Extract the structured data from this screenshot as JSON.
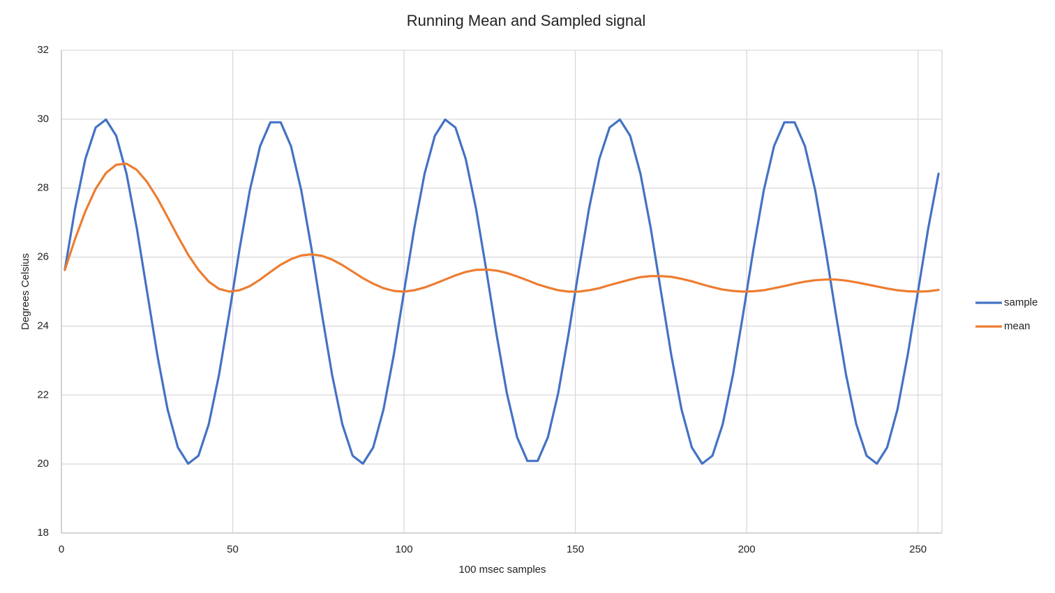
{
  "chart_data": {
    "type": "line",
    "title": "Running Mean and Sampled signal",
    "x_label": "100 msec samples",
    "y_label": "Degrees Celsius",
    "x": [
      1,
      4,
      7,
      10,
      13,
      16,
      19,
      22,
      25,
      28,
      31,
      34,
      37,
      40,
      43,
      46,
      49,
      52,
      55,
      58,
      61,
      64,
      67,
      70,
      73,
      76,
      79,
      82,
      85,
      88,
      91,
      94,
      97,
      100,
      103,
      106,
      109,
      112,
      115,
      118,
      121,
      124,
      127,
      130,
      133,
      136,
      139,
      142,
      145,
      148,
      151,
      154,
      157,
      160,
      163,
      166,
      169,
      172,
      175,
      178,
      181,
      184,
      187,
      190,
      193,
      196,
      199,
      202,
      205,
      208,
      211,
      214,
      217,
      220,
      223,
      226,
      229,
      232,
      235,
      238,
      241,
      244,
      247,
      250,
      253,
      256
    ],
    "series": [
      {
        "name": "sample",
        "color": "#4472c4",
        "values": [
          25.63,
          27.41,
          28.85,
          29.76,
          29.99,
          29.52,
          28.42,
          26.84,
          25,
          23.16,
          21.58,
          20.48,
          20.01,
          20.24,
          21.15,
          22.59,
          24.37,
          26.24,
          27.94,
          29.22,
          29.91,
          29.91,
          29.22,
          27.94,
          26.24,
          24.37,
          22.59,
          21.15,
          20.24,
          20.01,
          20.48,
          21.58,
          23.16,
          25,
          26.84,
          28.42,
          29.52,
          29.99,
          29.76,
          28.85,
          27.41,
          25.63,
          23.76,
          22.06,
          20.78,
          20.09,
          20.09,
          20.78,
          22.06,
          23.76,
          25.63,
          27.41,
          28.85,
          29.76,
          29.99,
          29.52,
          28.42,
          26.84,
          25,
          23.16,
          21.58,
          20.48,
          20.01,
          20.24,
          21.15,
          22.59,
          24.37,
          26.24,
          27.94,
          29.22,
          29.91,
          29.91,
          29.22,
          27.94,
          26.24,
          24.37,
          22.59,
          21.15,
          20.24,
          20.01,
          20.48,
          21.58,
          23.16,
          25,
          26.84,
          28.42
        ]
      },
      {
        "name": "mean",
        "color": "#ed7d31",
        "values": [
          25.63,
          26.53,
          27.33,
          27.98,
          28.44,
          28.68,
          28.71,
          28.53,
          28.18,
          27.71,
          27.16,
          26.6,
          26.07,
          25.63,
          25.29,
          25.08,
          25,
          25.04,
          25.16,
          25.35,
          25.57,
          25.78,
          25.94,
          26.05,
          26.08,
          26.04,
          25.93,
          25.77,
          25.58,
          25.39,
          25.23,
          25.1,
          25.02,
          25,
          25.04,
          25.12,
          25.23,
          25.35,
          25.47,
          25.57,
          25.63,
          25.64,
          25.61,
          25.54,
          25.44,
          25.33,
          25.21,
          25.12,
          25.04,
          25,
          25,
          25.04,
          25.1,
          25.19,
          25.27,
          25.35,
          25.42,
          25.45,
          25.45,
          25.43,
          25.37,
          25.3,
          25.21,
          25.13,
          25.06,
          25.02,
          25,
          25.01,
          25.04,
          25.1,
          25.16,
          25.23,
          25.29,
          25.33,
          25.35,
          25.35,
          25.32,
          25.27,
          25.21,
          25.15,
          25.09,
          25.04,
          25.01,
          25,
          25.01,
          25.05
        ]
      }
    ],
    "xlim": [
      0,
      257
    ],
    "xticks": [
      0,
      50,
      100,
      150,
      200,
      250
    ],
    "ylim": [
      18,
      32
    ],
    "yticks": [
      18,
      20,
      22,
      24,
      26,
      28,
      30,
      32
    ],
    "grid": true,
    "legend": "right"
  }
}
